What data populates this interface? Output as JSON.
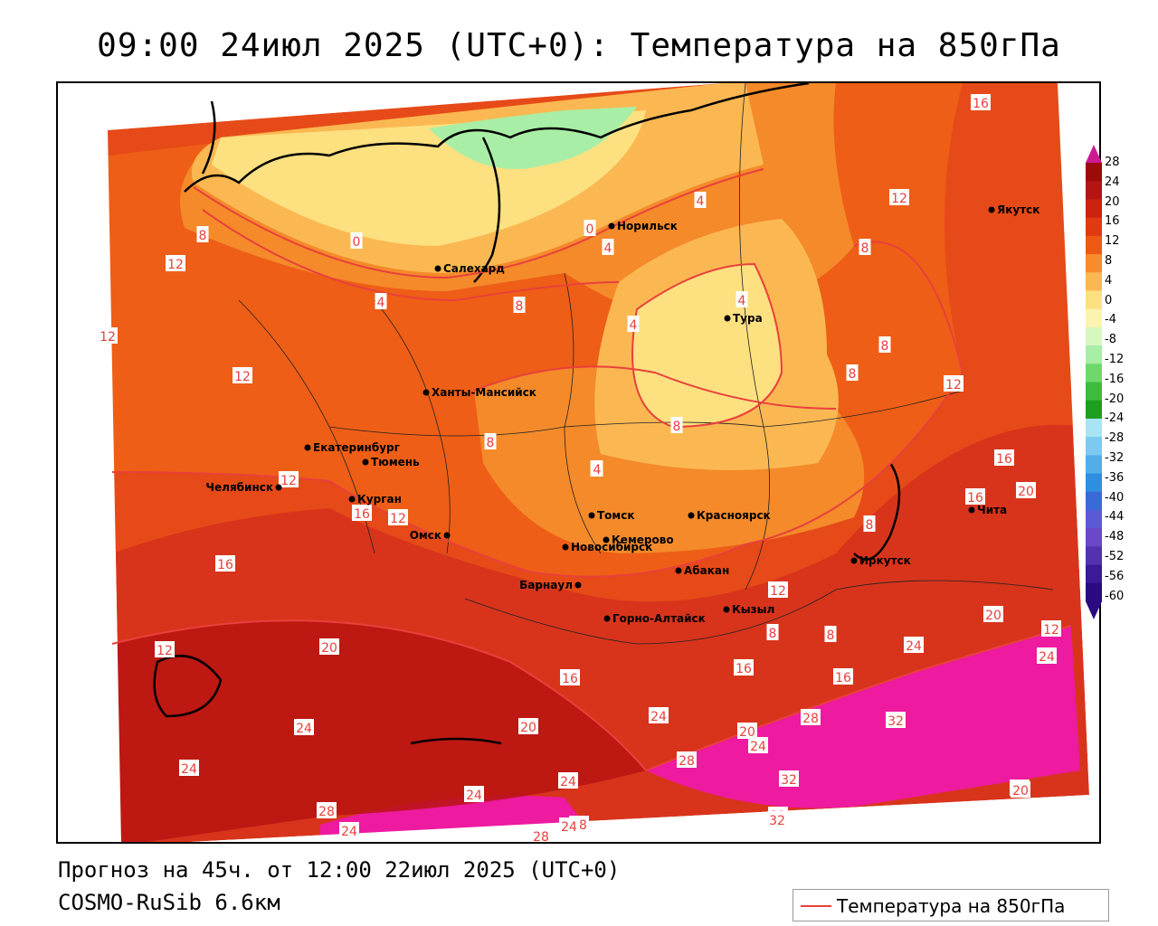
{
  "title": "09:00 24июл 2025 (UTC+0): Температура на 850гПа",
  "footer": {
    "forecast": "Прогноз на 45ч. от 12:00 22июл 2025 (UTC+0)",
    "model": "COSMO-RuSib 6.6км"
  },
  "legend": {
    "label": "Температура на 850гПа",
    "line_color": "#e8403c"
  },
  "colorbar": {
    "labels": [
      "28",
      "24",
      "20",
      "16",
      "12",
      "8",
      "4",
      "0",
      "-4",
      "-8",
      "-12",
      "-16",
      "-20",
      "-24",
      "-28",
      "-32",
      "-36",
      "-40",
      "-44",
      "-48",
      "-52",
      "-56",
      "-60"
    ],
    "colors": [
      "#9c0a0a",
      "#b51414",
      "#cc2210",
      "#e03a10",
      "#ee5a14",
      "#f88c2c",
      "#fbb852",
      "#fde080",
      "#fdf3b0",
      "#d6f7c0",
      "#a8eea6",
      "#6fd86c",
      "#3dbb3d",
      "#1e9e1e",
      "#a8e4f4",
      "#7ec9ef",
      "#52aeea",
      "#2e8fe0",
      "#3a6ad8",
      "#5a5ad6",
      "#6a48c8",
      "#5232b0",
      "#3a1a98",
      "#2a0a80"
    ]
  },
  "cities": [
    {
      "name": "Норильск"
    },
    {
      "name": "Якутск"
    },
    {
      "name": "Салехард"
    },
    {
      "name": "Тура"
    },
    {
      "name": "Ханты-Мансийск"
    },
    {
      "name": "Екатеринбург"
    },
    {
      "name": "Тюмень"
    },
    {
      "name": "Челябинск"
    },
    {
      "name": "Курган"
    },
    {
      "name": "Омск"
    },
    {
      "name": "Томск"
    },
    {
      "name": "Красноярск"
    },
    {
      "name": "Новосибирск"
    },
    {
      "name": "Кемерово"
    },
    {
      "name": "Абакан"
    },
    {
      "name": "Иркутск"
    },
    {
      "name": "Чита"
    },
    {
      "name": "Барнаул"
    },
    {
      "name": "Горно-Алтайск"
    },
    {
      "name": "Кызыл"
    }
  ],
  "isotherm_labels": [
    "16",
    "12",
    "4",
    "8",
    "0",
    "0",
    "4",
    "8",
    "12",
    "8",
    "12",
    "12",
    "4",
    "8",
    "4",
    "8",
    "4",
    "4",
    "12",
    "8",
    "8",
    "4",
    "16",
    "16",
    "16",
    "12",
    "20",
    "12",
    "16",
    "8",
    "12",
    "12",
    "8",
    "20",
    "20",
    "16",
    "8",
    "16",
    "24",
    "24",
    "32",
    "28",
    "20",
    "24",
    "24",
    "16",
    "12",
    "24",
    "28",
    "20",
    "32",
    "28",
    "24",
    "20",
    "32",
    "24",
    "24",
    "28",
    "24",
    "28",
    "24",
    "32",
    "20"
  ]
}
